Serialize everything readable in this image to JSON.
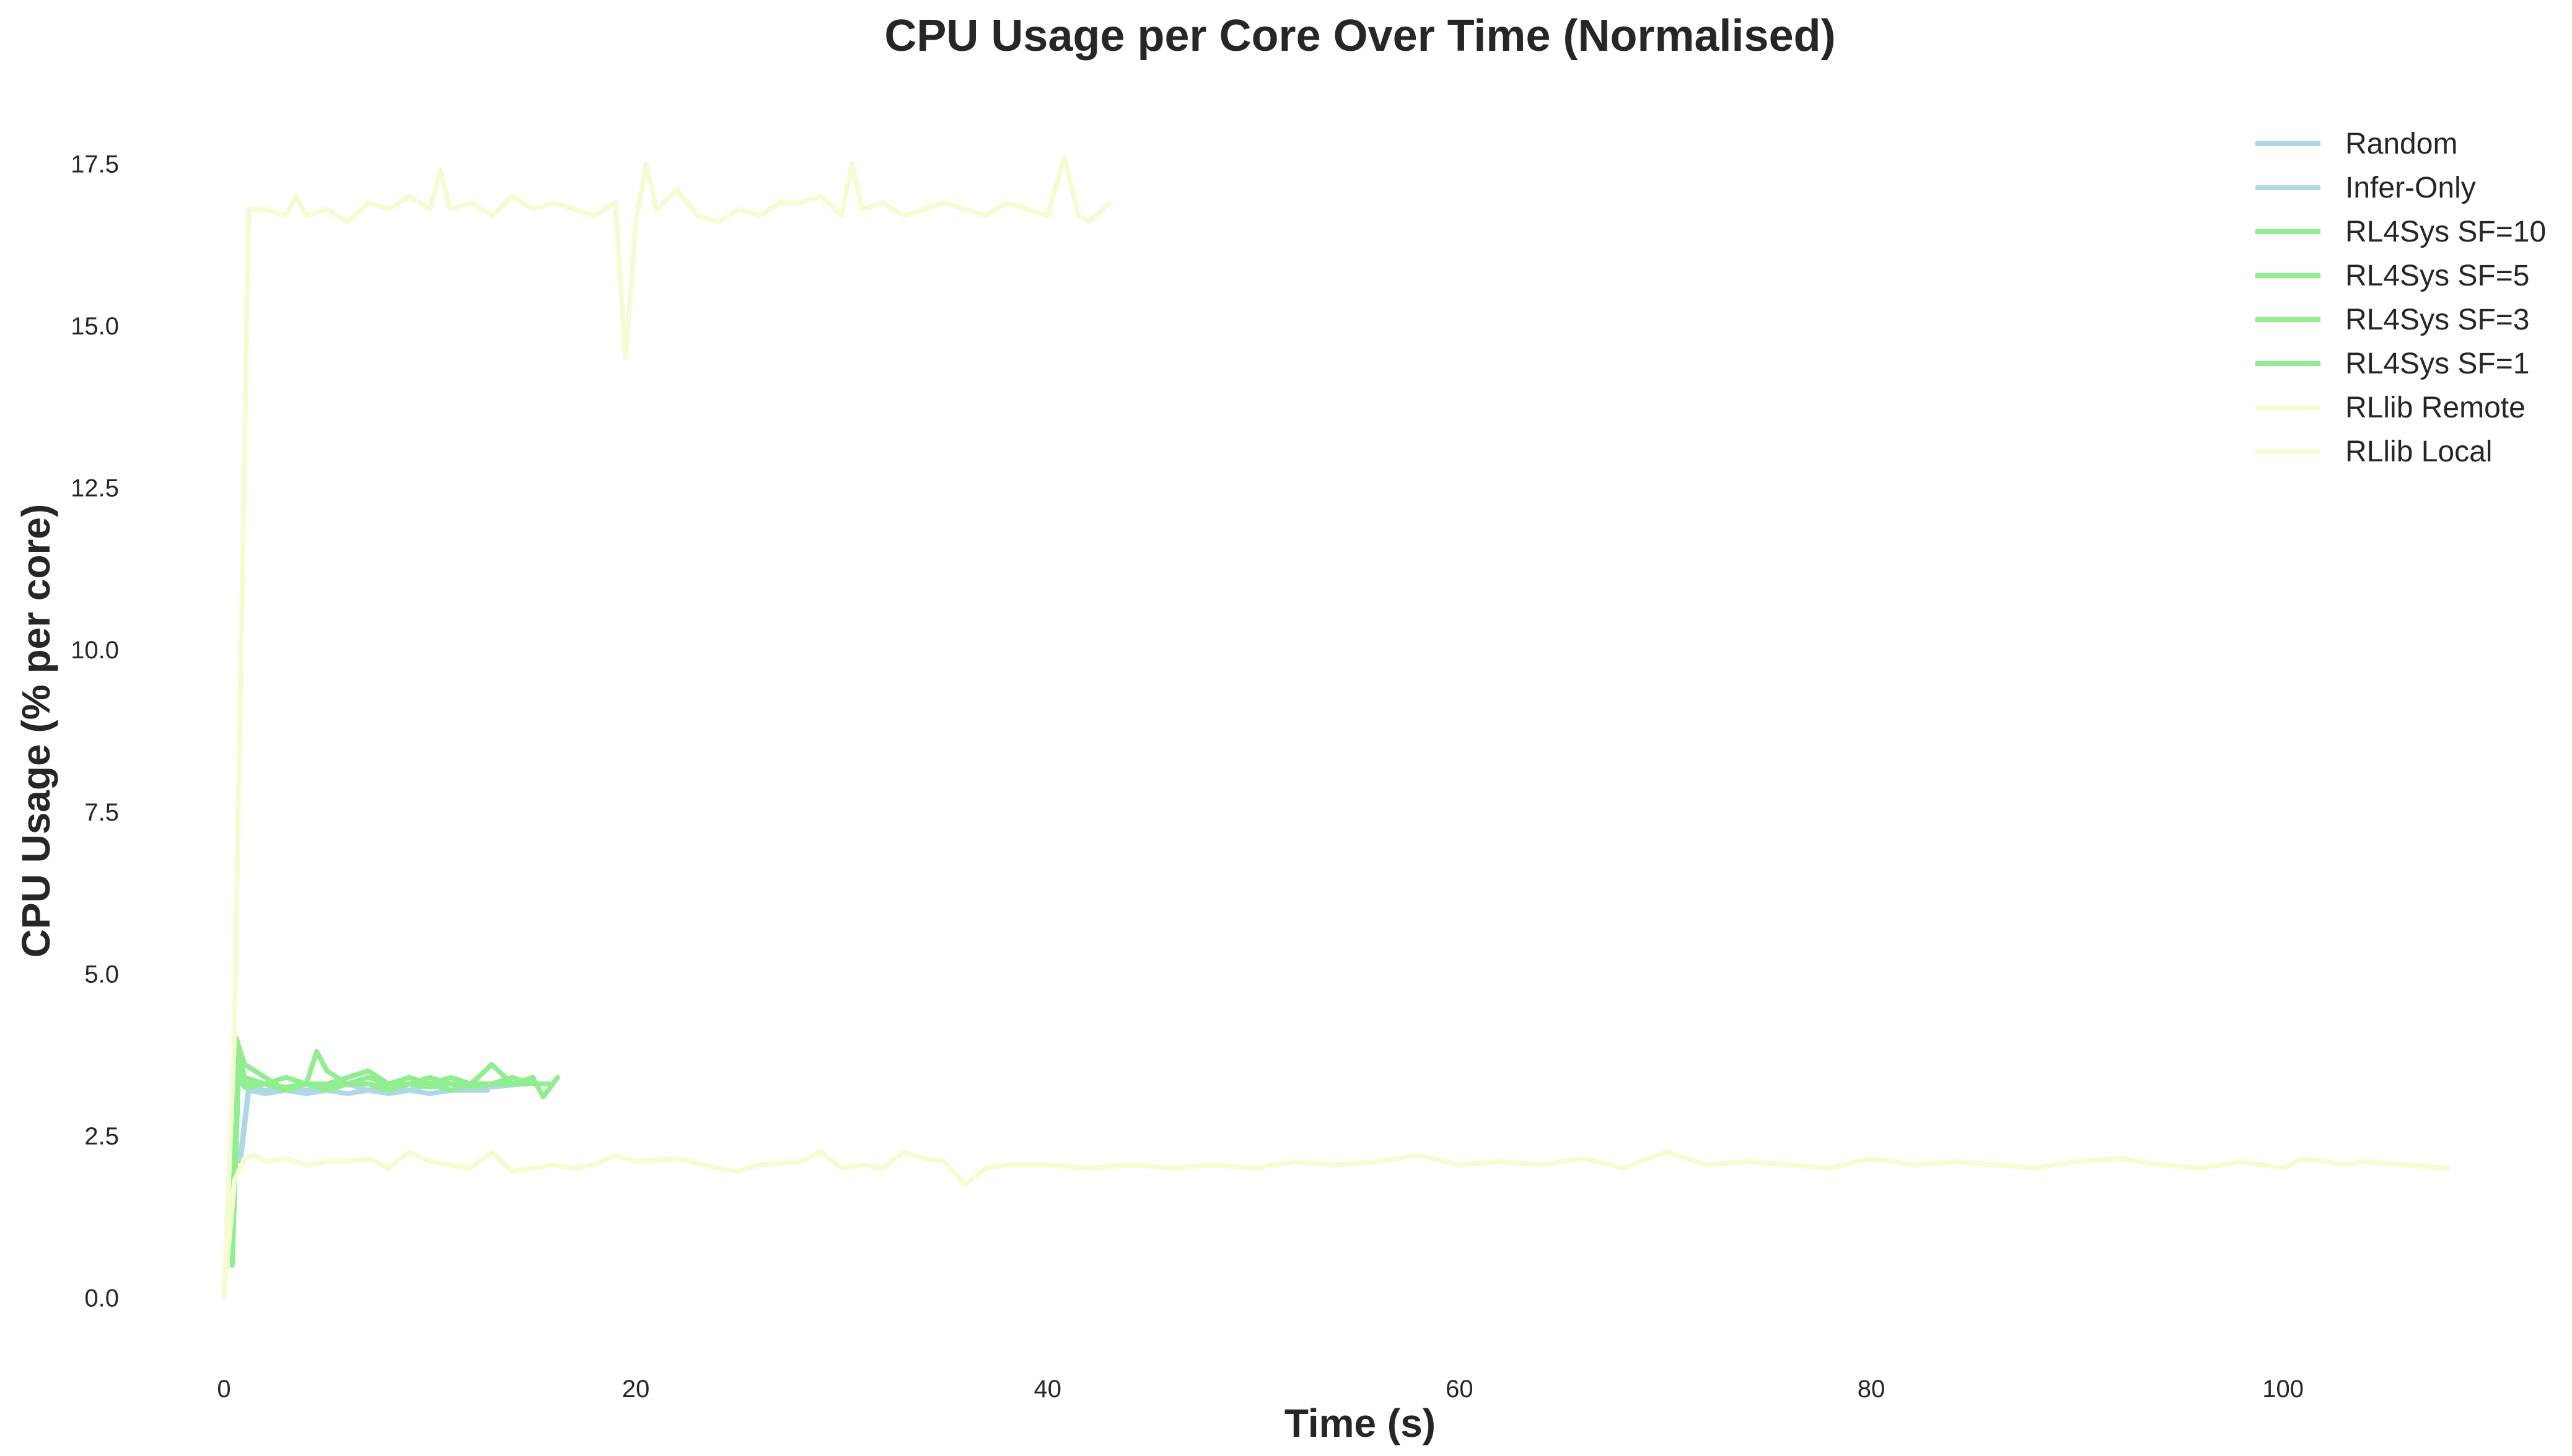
{
  "chart_data": {
    "type": "line",
    "title": "CPU Usage per Core Over Time (Normalised)",
    "xlabel": "Time (s)",
    "ylabel": "CPU Usage (% per core)",
    "xlim": [
      -4.5,
      112.5
    ],
    "ylim": [
      -1.0,
      18.5
    ],
    "xticks": [
      0,
      20,
      40,
      60,
      80,
      100
    ],
    "xtick_labels": [
      "0",
      "20",
      "40",
      "60",
      "80",
      "100"
    ],
    "yticks": [
      0.0,
      2.5,
      5.0,
      7.5,
      10.0,
      12.5,
      15.0,
      17.5
    ],
    "ytick_labels": [
      "0.0",
      "2.5",
      "5.0",
      "7.5",
      "10.0",
      "12.5",
      "15.0",
      "17.5"
    ],
    "grid": false,
    "legend_position": "top-right",
    "series": [
      {
        "name": "Random",
        "color": "#add8e6",
        "x": [
          0.8,
          1.2,
          2,
          3,
          4,
          5,
          6,
          7,
          8,
          9,
          10,
          11,
          12,
          12.8
        ],
        "y": [
          2.1,
          3.2,
          3.15,
          3.2,
          3.15,
          3.2,
          3.15,
          3.2,
          3.15,
          3.2,
          3.15,
          3.2,
          3.2,
          3.2
        ]
      },
      {
        "name": "Infer-Only",
        "color": "#add8e6",
        "x": [
          0.8,
          1.2,
          2,
          3,
          4,
          5,
          6,
          7,
          8,
          9,
          10,
          11,
          12,
          13,
          14.5
        ],
        "y": [
          2.2,
          3.25,
          3.2,
          3.25,
          3.2,
          3.25,
          3.3,
          3.2,
          3.25,
          3.2,
          3.3,
          3.2,
          3.25,
          3.25,
          3.3
        ]
      },
      {
        "name": "RL4Sys SF=10",
        "color": "#90ee90",
        "x": [
          0.4,
          0.6,
          1,
          2,
          3,
          4,
          4.5,
          5,
          6,
          7,
          8,
          9,
          10,
          11,
          12,
          13,
          14,
          15,
          15.5,
          16.2
        ],
        "y": [
          1.0,
          4.0,
          3.6,
          3.4,
          3.2,
          3.3,
          3.8,
          3.5,
          3.3,
          3.4,
          3.3,
          3.3,
          3.4,
          3.3,
          3.3,
          3.6,
          3.3,
          3.4,
          3.1,
          3.4
        ]
      },
      {
        "name": "RL4Sys SF=5",
        "color": "#90ee90",
        "x": [
          0.4,
          0.7,
          1,
          2,
          3,
          4,
          5,
          6,
          7,
          8,
          9,
          10,
          11,
          12,
          13,
          14,
          15,
          15.8
        ],
        "y": [
          0.8,
          3.8,
          3.4,
          3.3,
          3.4,
          3.3,
          3.3,
          3.4,
          3.5,
          3.3,
          3.4,
          3.3,
          3.4,
          3.3,
          3.3,
          3.4,
          3.3,
          3.3
        ]
      },
      {
        "name": "RL4Sys SF=3",
        "color": "#90ee90",
        "x": [
          0.4,
          0.7,
          1,
          2,
          3,
          4,
          5,
          6,
          7,
          8,
          9,
          10,
          11,
          12,
          13,
          14,
          15
        ],
        "y": [
          0.6,
          3.6,
          3.3,
          3.3,
          3.2,
          3.3,
          3.2,
          3.3,
          3.3,
          3.2,
          3.3,
          3.3,
          3.2,
          3.3,
          3.3,
          3.3,
          3.4
        ]
      },
      {
        "name": "RL4Sys SF=1",
        "color": "#90ee90",
        "x": [
          0.4,
          0.7,
          1,
          2,
          3,
          4,
          5,
          6,
          7,
          8,
          9,
          10,
          11,
          12,
          13,
          14,
          14.8
        ],
        "y": [
          0.5,
          3.4,
          3.25,
          3.3,
          3.25,
          3.3,
          3.25,
          3.3,
          3.3,
          3.25,
          3.3,
          3.25,
          3.3,
          3.25,
          3.3,
          3.3,
          3.3
        ]
      },
      {
        "name": "RLlib Remote",
        "color": "#f6fcd2",
        "x": [
          0,
          0.5,
          1,
          1.5,
          2,
          3,
          4,
          5,
          6,
          7,
          8,
          9,
          10,
          11,
          12,
          13,
          14,
          15,
          16,
          17,
          18,
          19,
          20,
          22,
          24,
          25,
          26,
          28,
          29,
          30,
          31,
          32,
          33,
          34,
          35,
          36,
          37,
          38,
          40,
          42,
          44,
          46,
          48,
          50,
          52,
          54,
          56,
          58,
          60,
          62,
          64,
          66,
          68,
          70,
          72,
          74,
          76,
          78,
          80,
          82,
          84,
          86,
          88,
          90,
          92,
          94,
          96,
          98,
          100,
          101,
          102,
          103,
          104,
          106,
          108
        ],
        "y": [
          0.0,
          1.8,
          2.15,
          2.2,
          2.1,
          2.15,
          2.05,
          2.1,
          2.1,
          2.15,
          2.0,
          2.25,
          2.1,
          2.05,
          2.0,
          2.25,
          1.95,
          2.0,
          2.05,
          2.0,
          2.05,
          2.2,
          2.1,
          2.15,
          2.0,
          1.95,
          2.05,
          2.1,
          2.25,
          2.0,
          2.05,
          2.0,
          2.25,
          2.15,
          2.1,
          1.75,
          2.0,
          2.05,
          2.05,
          2.0,
          2.05,
          2.0,
          2.05,
          2.0,
          2.1,
          2.05,
          2.1,
          2.2,
          2.05,
          2.1,
          2.05,
          2.15,
          2.0,
          2.25,
          2.05,
          2.1,
          2.05,
          2.0,
          2.15,
          2.05,
          2.1,
          2.05,
          2.0,
          2.1,
          2.15,
          2.05,
          2.0,
          2.1,
          2.0,
          2.15,
          2.1,
          2.05,
          2.1,
          2.05,
          2.0
        ]
      },
      {
        "name": "RLlib Local",
        "color": "#f6fcd2",
        "x": [
          0,
          0.5,
          1.2,
          2,
          3,
          3.5,
          4,
          5,
          6,
          7,
          8,
          9,
          10,
          10.5,
          11,
          12,
          13,
          14,
          15,
          16,
          17,
          18,
          19,
          19.5,
          20,
          20.5,
          21,
          22,
          23,
          24,
          25,
          26,
          27,
          28,
          29,
          30,
          30.5,
          31,
          32,
          33,
          34,
          35,
          36,
          37,
          38,
          39,
          40,
          40.8,
          41.5,
          42,
          43
        ],
        "y": [
          0.0,
          4.0,
          16.8,
          16.8,
          16.7,
          17.0,
          16.7,
          16.8,
          16.6,
          16.9,
          16.8,
          17.0,
          16.8,
          17.4,
          16.8,
          16.9,
          16.7,
          17.0,
          16.8,
          16.9,
          16.8,
          16.7,
          16.9,
          14.5,
          16.6,
          17.5,
          16.8,
          17.1,
          16.7,
          16.6,
          16.8,
          16.7,
          16.9,
          16.9,
          17.0,
          16.7,
          17.5,
          16.8,
          16.9,
          16.7,
          16.8,
          16.9,
          16.8,
          16.7,
          16.9,
          16.8,
          16.7,
          17.6,
          16.7,
          16.6,
          16.9
        ]
      }
    ]
  }
}
